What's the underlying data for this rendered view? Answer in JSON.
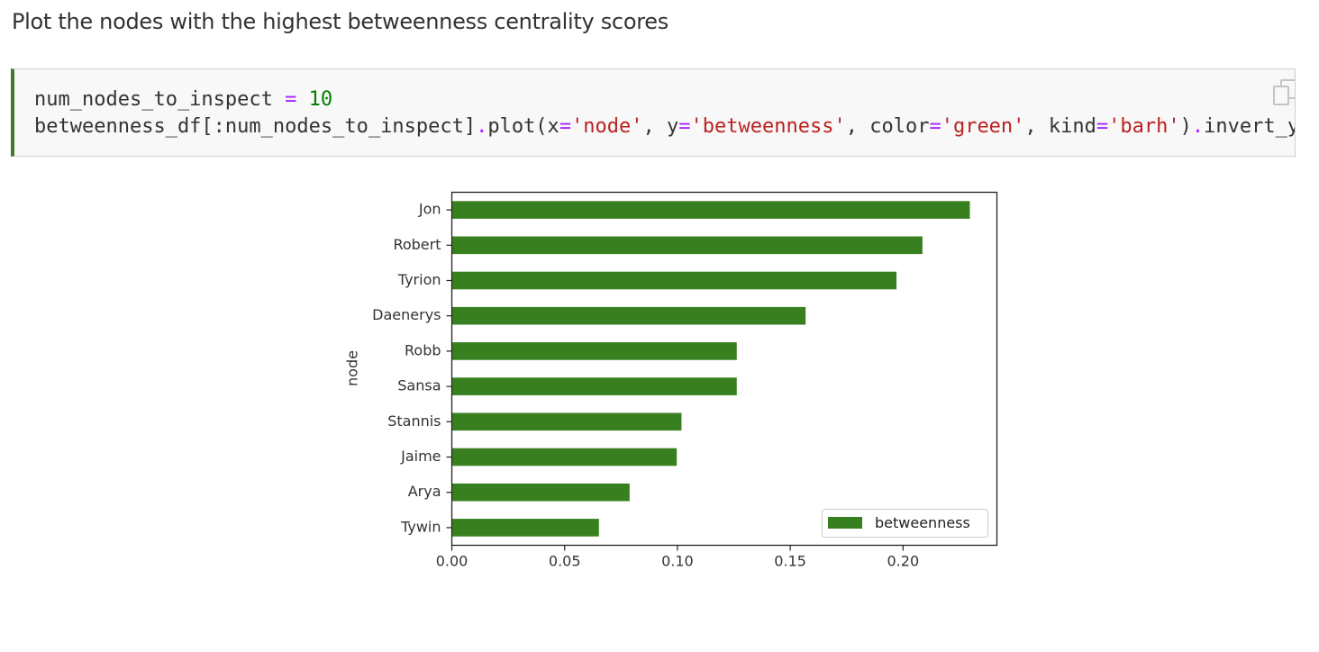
{
  "heading": "Plot the nodes with the highest betweenness centrality scores",
  "code": {
    "line1": [
      {
        "t": "num_nodes_to_inspect ",
        "c": "plain"
      },
      {
        "t": "=",
        "c": "op"
      },
      {
        "t": " ",
        "c": "plain"
      },
      {
        "t": "10",
        "c": "num"
      }
    ],
    "line2": [
      {
        "t": "betweenness_df[:num_nodes_to_inspect]",
        "c": "plain"
      },
      {
        "t": ".",
        "c": "op"
      },
      {
        "t": "plot(x",
        "c": "plain"
      },
      {
        "t": "=",
        "c": "op"
      },
      {
        "t": "'node'",
        "c": "str"
      },
      {
        "t": ", y",
        "c": "plain"
      },
      {
        "t": "=",
        "c": "op"
      },
      {
        "t": "'betweenness'",
        "c": "str"
      },
      {
        "t": ", color",
        "c": "plain"
      },
      {
        "t": "=",
        "c": "op"
      },
      {
        "t": "'green'",
        "c": "str"
      },
      {
        "t": ", kind",
        "c": "plain"
      },
      {
        "t": "=",
        "c": "op"
      },
      {
        "t": "'barh'",
        "c": "str"
      },
      {
        "t": ")",
        "c": "plain"
      },
      {
        "t": ".",
        "c": "op"
      },
      {
        "t": "invert_yaxis()",
        "c": "plain"
      }
    ],
    "copy_icon": "copy-icon"
  },
  "colors": {
    "bar": "#38801f",
    "cell_border_left": "#42792f",
    "op": "#aa22ff",
    "num": "#008000",
    "str": "#ba2121"
  },
  "chart_data": {
    "type": "bar",
    "orientation": "horizontal",
    "categories": [
      "Jon",
      "Robert",
      "Tyrion",
      "Daenerys",
      "Robb",
      "Sansa",
      "Stannis",
      "Jaime",
      "Arya",
      "Tywin"
    ],
    "series": [
      {
        "name": "betweenness",
        "values": [
          0.2296,
          0.2086,
          0.1971,
          0.1568,
          0.1263,
          0.1263,
          0.1018,
          0.0997,
          0.0788,
          0.0652
        ]
      }
    ],
    "xlabel": "",
    "ylabel": "node",
    "xlim": [
      0,
      0.2416
    ],
    "xticks": [
      {
        "value": 0.0,
        "label": "0.00"
      },
      {
        "value": 0.05,
        "label": "0.05"
      },
      {
        "value": 0.1,
        "label": "0.10"
      },
      {
        "value": 0.15,
        "label": "0.15"
      },
      {
        "value": 0.2,
        "label": "0.20"
      }
    ],
    "grid": false,
    "legend": "lower-right"
  }
}
